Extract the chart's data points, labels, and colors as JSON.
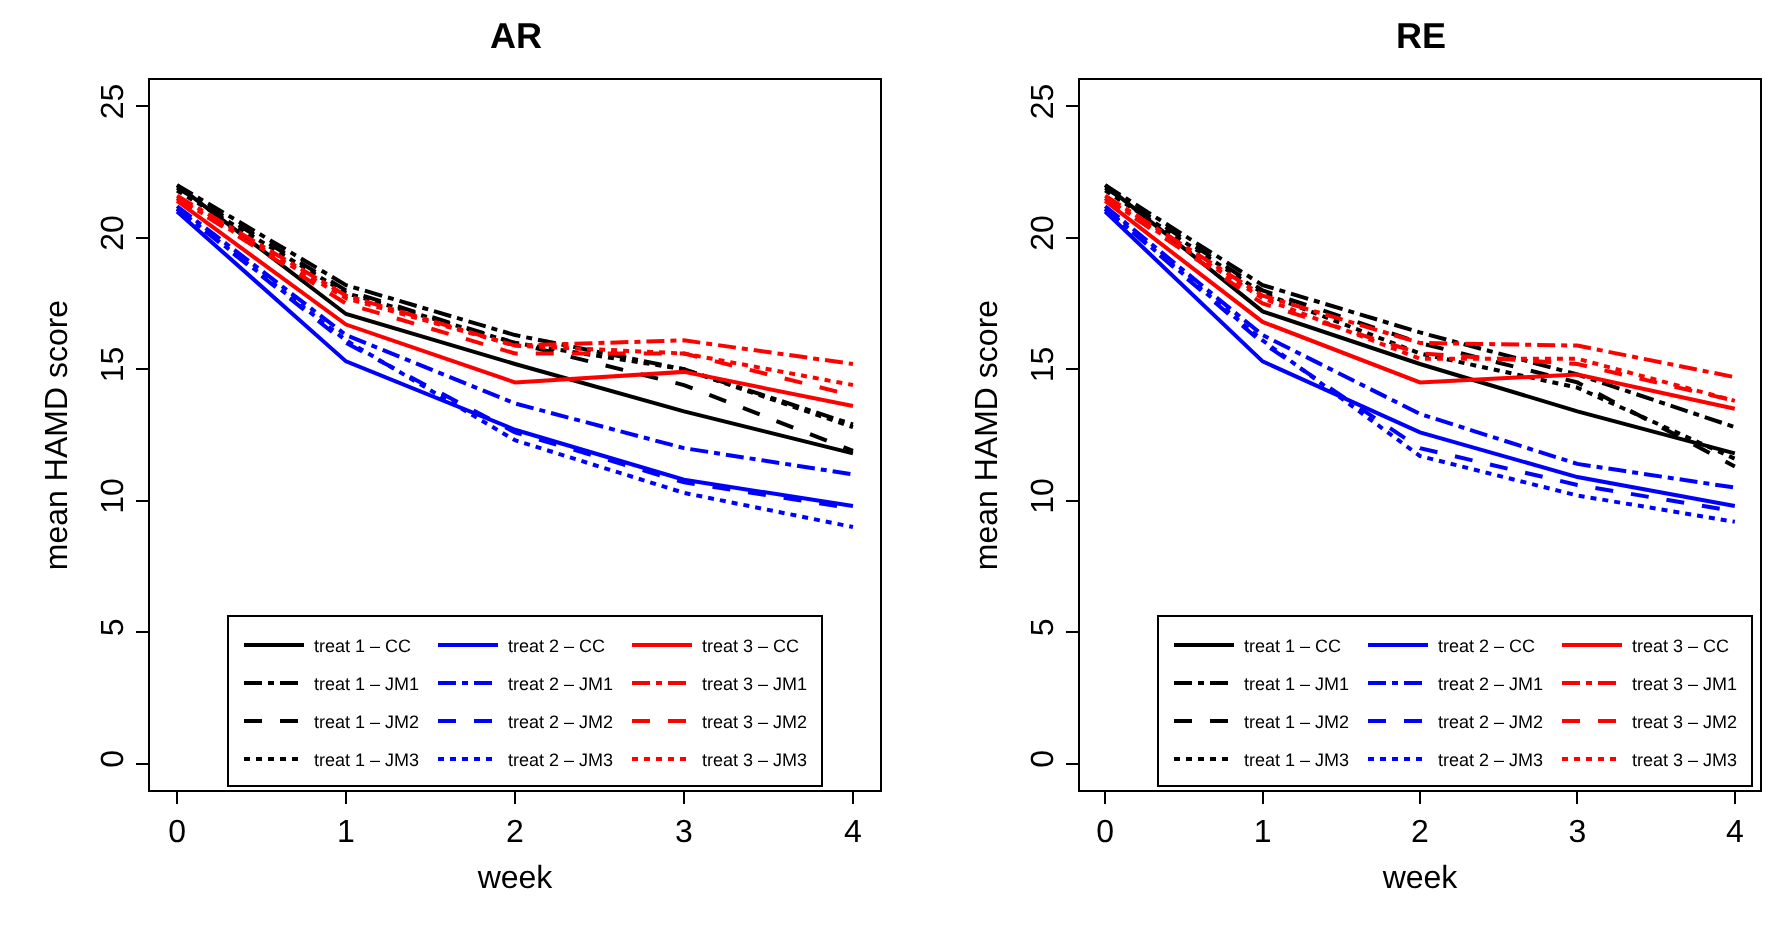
{
  "chart_data": [
    {
      "type": "line",
      "title": "AR",
      "xlabel": "week",
      "ylabel": "mean HAMD score",
      "x": [
        0,
        1,
        2,
        3,
        4
      ],
      "xlim": [
        -0.16,
        4.16
      ],
      "xticks": [
        0,
        1,
        2,
        3,
        4
      ],
      "ylim": [
        -1,
        26
      ],
      "yticks": [
        0,
        5,
        10,
        15,
        20,
        25
      ],
      "legend": "bottom",
      "marker": "none",
      "series": [
        {
          "name": "treat 1 – CC",
          "color": "#000000",
          "line_style": "solid",
          "values": [
            22.0,
            17.1,
            15.2,
            13.4,
            11.8
          ]
        },
        {
          "name": "treat 1 – JM1",
          "color": "#000000",
          "line_style": "dashdot",
          "values": [
            22.0,
            18.2,
            16.3,
            15.0,
            12.9
          ]
        },
        {
          "name": "treat 1 – JM2",
          "color": "#000000",
          "line_style": "dashed",
          "values": [
            21.9,
            18.0,
            16.0,
            14.4,
            11.9
          ]
        },
        {
          "name": "treat 1 – JM3",
          "color": "#000000",
          "line_style": "dotted",
          "values": [
            21.8,
            17.9,
            16.0,
            15.0,
            12.8
          ]
        },
        {
          "name": "treat 2 – CC",
          "color": "#0000ff",
          "line_style": "solid",
          "values": [
            21.0,
            15.3,
            12.7,
            10.8,
            9.8
          ]
        },
        {
          "name": "treat 2 – JM1",
          "color": "#0000ff",
          "line_style": "dashdot",
          "values": [
            21.2,
            16.3,
            13.7,
            12.0,
            11.0
          ]
        },
        {
          "name": "treat 2 – JM2",
          "color": "#0000ff",
          "line_style": "dashed",
          "values": [
            21.1,
            16.0,
            12.6,
            10.7,
            9.7
          ]
        },
        {
          "name": "treat 2 – JM3",
          "color": "#0000ff",
          "line_style": "dotted",
          "values": [
            21.1,
            16.1,
            12.3,
            10.3,
            9.0
          ]
        },
        {
          "name": "treat 3 – CC",
          "color": "#ff0000",
          "line_style": "solid",
          "values": [
            21.4,
            16.7,
            14.5,
            14.9,
            13.6
          ]
        },
        {
          "name": "treat 3 – JM1",
          "color": "#ff0000",
          "line_style": "dashdot",
          "values": [
            21.6,
            17.8,
            15.9,
            16.1,
            15.2
          ]
        },
        {
          "name": "treat 3 – JM2",
          "color": "#ff0000",
          "line_style": "dashed",
          "values": [
            21.5,
            17.5,
            15.6,
            15.6,
            14.0
          ]
        },
        {
          "name": "treat 3 – JM3",
          "color": "#ff0000",
          "line_style": "dotted",
          "values": [
            21.5,
            17.7,
            15.9,
            15.6,
            14.4
          ]
        }
      ]
    },
    {
      "type": "line",
      "title": "RE",
      "xlabel": "week",
      "ylabel": "mean HAMD score",
      "x": [
        0,
        1,
        2,
        3,
        4
      ],
      "xlim": [
        -0.16,
        4.16
      ],
      "xticks": [
        0,
        1,
        2,
        3,
        4
      ],
      "ylim": [
        -1,
        26
      ],
      "yticks": [
        0,
        5,
        10,
        15,
        20,
        25
      ],
      "legend": "bottom",
      "marker": "none",
      "series": [
        {
          "name": "treat 1 – CC",
          "color": "#000000",
          "line_style": "solid",
          "values": [
            22.0,
            17.2,
            15.2,
            13.4,
            11.8
          ]
        },
        {
          "name": "treat 1 – JM1",
          "color": "#000000",
          "line_style": "dashdot",
          "values": [
            22.0,
            18.2,
            16.4,
            14.8,
            12.8
          ]
        },
        {
          "name": "treat 1 – JM2",
          "color": "#000000",
          "line_style": "dashed",
          "values": [
            21.9,
            18.0,
            16.0,
            14.5,
            11.3
          ]
        },
        {
          "name": "treat 1 – JM3",
          "color": "#000000",
          "line_style": "dotted",
          "values": [
            21.8,
            17.9,
            15.6,
            14.3,
            11.6
          ]
        },
        {
          "name": "treat 2 – CC",
          "color": "#0000ff",
          "line_style": "solid",
          "values": [
            21.0,
            15.3,
            12.6,
            10.9,
            9.8
          ]
        },
        {
          "name": "treat 2 – JM1",
          "color": "#0000ff",
          "line_style": "dashdot",
          "values": [
            21.2,
            16.3,
            13.3,
            11.4,
            10.5
          ]
        },
        {
          "name": "treat 2 – JM2",
          "color": "#0000ff",
          "line_style": "dashed",
          "values": [
            21.1,
            16.0,
            12.0,
            10.6,
            9.6
          ]
        },
        {
          "name": "treat 2 – JM3",
          "color": "#0000ff",
          "line_style": "dotted",
          "values": [
            21.1,
            16.1,
            11.7,
            10.2,
            9.2
          ]
        },
        {
          "name": "treat 3 – CC",
          "color": "#ff0000",
          "line_style": "solid",
          "values": [
            21.4,
            16.8,
            14.5,
            14.8,
            13.5
          ]
        },
        {
          "name": "treat 3 – JM1",
          "color": "#ff0000",
          "line_style": "dashdot",
          "values": [
            21.6,
            17.8,
            16.0,
            15.9,
            14.7
          ]
        },
        {
          "name": "treat 3 – JM2",
          "color": "#ff0000",
          "line_style": "dashed",
          "values": [
            21.5,
            17.5,
            15.6,
            15.2,
            13.8
          ]
        },
        {
          "name": "treat 3 – JM3",
          "color": "#ff0000",
          "line_style": "dotted",
          "values": [
            21.5,
            17.7,
            15.4,
            15.4,
            13.8
          ]
        }
      ]
    }
  ]
}
